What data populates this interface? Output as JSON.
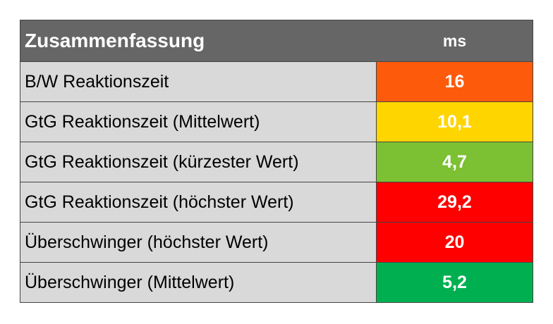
{
  "header": {
    "title": "Zusammenfassung",
    "unit": "ms"
  },
  "table": {
    "rows": [
      {
        "label": "B/W Reaktionszeit",
        "value": "16",
        "color": "#fe5a0c"
      },
      {
        "label": "GtG Reaktionszeit (Mittelwert)",
        "value": "10,1",
        "color": "#ffd500"
      },
      {
        "label": "GtG Reaktionszeit (kürzester Wert)",
        "value": "4,7",
        "color": "#7cc033"
      },
      {
        "label": "GtG Reaktionszeit (höchster Wert)",
        "value": "29,2",
        "color": "#ff0000"
      },
      {
        "label": "Überschwinger (höchster Wert)",
        "value": "20",
        "color": "#ff0000"
      },
      {
        "label": "Überschwinger (Mittelwert)",
        "value": "5,2",
        "color": "#00b050"
      }
    ]
  }
}
